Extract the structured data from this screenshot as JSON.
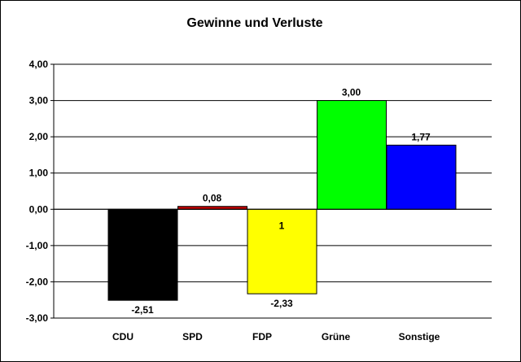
{
  "chart_data": {
    "type": "bar",
    "title": "Gewinne und Verluste",
    "xlabel": "",
    "ylabel": "",
    "ylim": [
      -3,
      4
    ],
    "y_ticks": [
      "4,00",
      "3,00",
      "2,00",
      "1,00",
      "0,00",
      "-1,00",
      "-2,00",
      "-3,00"
    ],
    "y_tick_values": [
      4,
      3,
      2,
      1,
      0,
      -1,
      -2,
      -3
    ],
    "grid": true,
    "legend": false,
    "categories": [
      "CDU",
      "SPD",
      "FDP",
      "Grüne",
      "Sonstige"
    ],
    "values": [
      -2.51,
      0.08,
      -2.33,
      3.0,
      1.77
    ],
    "data_labels": [
      "-2,51",
      "0,08",
      "-2,33",
      "3,00",
      "1,77"
    ],
    "colors": [
      "#000000",
      "#c00000",
      "#ffff00",
      "#00ff00",
      "#0000ff"
    ],
    "annotations": [
      {
        "category": "FDP",
        "text": "1"
      }
    ]
  }
}
